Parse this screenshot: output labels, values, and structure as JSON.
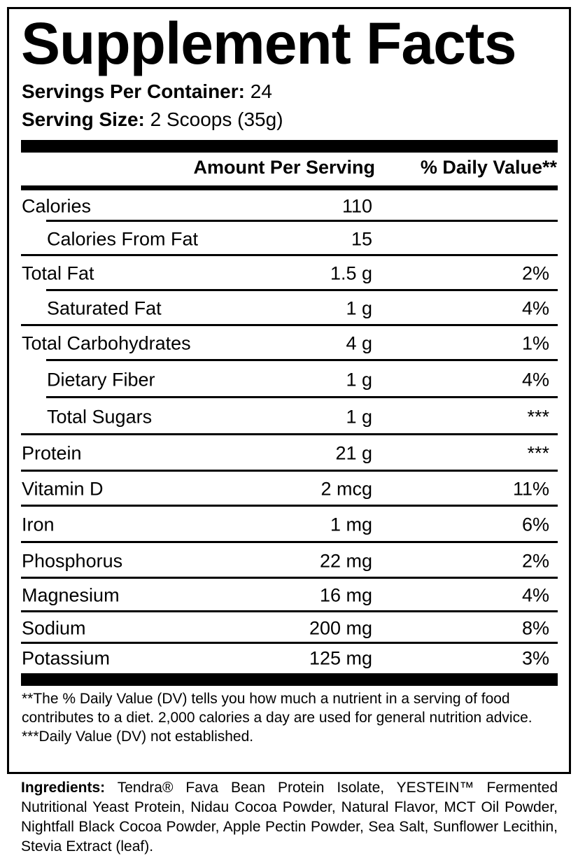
{
  "title": "Supplement Facts",
  "servings_per_container": {
    "label": "Servings Per Container:",
    "value": "24"
  },
  "serving_size": {
    "label": "Serving Size:",
    "value": "2 Scoops (35g)"
  },
  "headers": {
    "amount": "Amount Per Serving",
    "dv": "% Daily Value**"
  },
  "rows": [
    {
      "name": "Calories",
      "amount": "110",
      "dv": "",
      "sub": false
    },
    {
      "name": "Calories From Fat",
      "amount": "15",
      "dv": "",
      "sub": true
    },
    {
      "name": "Total Fat",
      "amount": "1.5 g",
      "dv": "2%",
      "sub": false
    },
    {
      "name": "Saturated Fat",
      "amount": "1 g",
      "dv": "4%",
      "sub": true
    },
    {
      "name": "Total Carbohydrates",
      "amount": "4 g",
      "dv": "1%",
      "sub": false
    },
    {
      "name": "Dietary Fiber",
      "amount": "1 g",
      "dv": "4%",
      "sub": true
    },
    {
      "name": "Total Sugars",
      "amount": "1 g",
      "dv": "***",
      "sub": true
    },
    {
      "name": "Protein",
      "amount": "21 g",
      "dv": "***",
      "sub": false
    },
    {
      "name": "Vitamin D",
      "amount": "2 mcg",
      "dv": "11%",
      "sub": false
    },
    {
      "name": "Iron",
      "amount": "1 mg",
      "dv": "6%",
      "sub": false
    },
    {
      "name": "Phosphorus",
      "amount": "22 mg",
      "dv": "2%",
      "sub": false
    },
    {
      "name": "Magnesium",
      "amount": "16 mg",
      "dv": "4%",
      "sub": false
    },
    {
      "name": "Sodium",
      "amount": "200 mg",
      "dv": "8%",
      "sub": false
    },
    {
      "name": "Potassium",
      "amount": "125 mg",
      "dv": "3%",
      "sub": false
    }
  ],
  "footnotes": {
    "dv_note": "**The % Daily Value (DV) tells you how much a nutrient in a serving of food contributes to a diet. 2,000 calories a day are used for general nutrition advice.",
    "not_established": "***Daily Value (DV) not established."
  },
  "ingredients": {
    "label": "Ingredients:",
    "text": "Tendra® Fava Bean Protein Isolate, YESTEIN™ Fermented Nutritional Yeast Protein, Nidau Cocoa Powder, Natural Flavor, MCT Oil Powder, Nightfall Black Cocoa Powder, Apple Pectin Powder, Sea Salt, Sunflower Lecithin, Stevia Extract (leaf)."
  }
}
